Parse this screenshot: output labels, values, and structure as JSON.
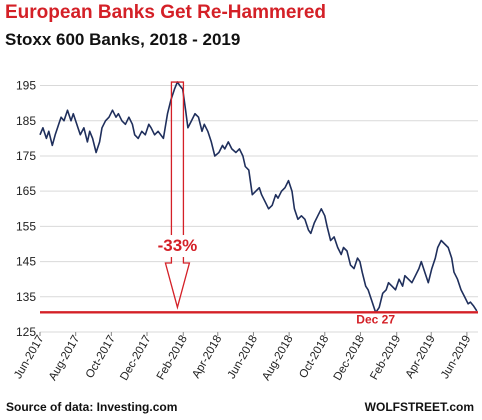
{
  "header": {
    "title": "European  Banks Get Re-Hammered",
    "subtitle": "Stoxx 600 Banks, 2018 - 2019"
  },
  "footer": {
    "source": "Source of data: Investing.com",
    "brand": "WOLFSTREET.com"
  },
  "chart_data": {
    "type": "line",
    "title": "European  Banks Get Re-Hammered",
    "subtitle": "Stoxx 600 Banks, 2018 - 2019",
    "xlabel": "",
    "ylabel": "",
    "ylim": [
      125,
      198
    ],
    "yticks": [
      125,
      135,
      145,
      155,
      165,
      175,
      185,
      195
    ],
    "xlim": [
      "2017-06-01",
      "2019-06-20"
    ],
    "xtick_labels": [
      {
        "date": "2017-06-01",
        "label": "Jun-2017"
      },
      {
        "date": "2017-08-01",
        "label": "Aug-2017"
      },
      {
        "date": "2017-10-01",
        "label": "Oct-2017"
      },
      {
        "date": "2017-12-01",
        "label": "Dec-2017"
      },
      {
        "date": "2018-02-01",
        "label": "Feb-2018"
      },
      {
        "date": "2018-04-01",
        "label": "Apr-2018"
      },
      {
        "date": "2018-06-01",
        "label": "Jun-2018"
      },
      {
        "date": "2018-08-01",
        "label": "Aug-2018"
      },
      {
        "date": "2018-10-01",
        "label": "Oct-2018"
      },
      {
        "date": "2018-12-01",
        "label": "Dec-2018"
      },
      {
        "date": "2019-02-01",
        "label": "Feb-2019"
      },
      {
        "date": "2019-04-01",
        "label": "Apr-2019"
      },
      {
        "date": "2019-06-01",
        "label": "Jun-2019"
      }
    ],
    "grid": {
      "horizontal": true,
      "vertical": false
    },
    "series": [
      {
        "color": "#1f2f5c",
        "points": [
          [
            "2017-06-01",
            181
          ],
          [
            "2017-06-06",
            183
          ],
          [
            "2017-06-12",
            180
          ],
          [
            "2017-06-16",
            182
          ],
          [
            "2017-06-22",
            178
          ],
          [
            "2017-06-27",
            181
          ],
          [
            "2017-07-03",
            184
          ],
          [
            "2017-07-07",
            186
          ],
          [
            "2017-07-12",
            185
          ],
          [
            "2017-07-18",
            188
          ],
          [
            "2017-07-24",
            185
          ],
          [
            "2017-07-28",
            187
          ],
          [
            "2017-08-03",
            184
          ],
          [
            "2017-08-09",
            181
          ],
          [
            "2017-08-15",
            183
          ],
          [
            "2017-08-21",
            179
          ],
          [
            "2017-08-25",
            182
          ],
          [
            "2017-08-30",
            180
          ],
          [
            "2017-09-05",
            176
          ],
          [
            "2017-09-11",
            179
          ],
          [
            "2017-09-15",
            183
          ],
          [
            "2017-09-21",
            185
          ],
          [
            "2017-09-27",
            186
          ],
          [
            "2017-10-03",
            188
          ],
          [
            "2017-10-09",
            186
          ],
          [
            "2017-10-13",
            187
          ],
          [
            "2017-10-19",
            185
          ],
          [
            "2017-10-25",
            184
          ],
          [
            "2017-10-31",
            186
          ],
          [
            "2017-11-06",
            184
          ],
          [
            "2017-11-10",
            181
          ],
          [
            "2017-11-16",
            180
          ],
          [
            "2017-11-22",
            182
          ],
          [
            "2017-11-28",
            181
          ],
          [
            "2017-12-04",
            184
          ],
          [
            "2017-12-08",
            183
          ],
          [
            "2017-12-14",
            181
          ],
          [
            "2017-12-20",
            182
          ],
          [
            "2017-12-29",
            180
          ],
          [
            "2018-01-05",
            187
          ],
          [
            "2018-01-11",
            191
          ],
          [
            "2018-01-17",
            194
          ],
          [
            "2018-01-22",
            196
          ],
          [
            "2018-01-26",
            195
          ],
          [
            "2018-01-31",
            194
          ],
          [
            "2018-02-05",
            188
          ],
          [
            "2018-02-09",
            183
          ],
          [
            "2018-02-15",
            185
          ],
          [
            "2018-02-21",
            187
          ],
          [
            "2018-02-27",
            186
          ],
          [
            "2018-03-05",
            182
          ],
          [
            "2018-03-09",
            184
          ],
          [
            "2018-03-15",
            182
          ],
          [
            "2018-03-21",
            179
          ],
          [
            "2018-03-27",
            175
          ],
          [
            "2018-04-03",
            176
          ],
          [
            "2018-04-09",
            178
          ],
          [
            "2018-04-13",
            177
          ],
          [
            "2018-04-19",
            179
          ],
          [
            "2018-04-25",
            177
          ],
          [
            "2018-05-02",
            176
          ],
          [
            "2018-05-08",
            177
          ],
          [
            "2018-05-14",
            175
          ],
          [
            "2018-05-18",
            172
          ],
          [
            "2018-05-24",
            171
          ],
          [
            "2018-05-30",
            164
          ],
          [
            "2018-06-05",
            165
          ],
          [
            "2018-06-11",
            166
          ],
          [
            "2018-06-15",
            164
          ],
          [
            "2018-06-21",
            162
          ],
          [
            "2018-06-27",
            160
          ],
          [
            "2018-07-03",
            161
          ],
          [
            "2018-07-09",
            164
          ],
          [
            "2018-07-13",
            163
          ],
          [
            "2018-07-19",
            165
          ],
          [
            "2018-07-25",
            166
          ],
          [
            "2018-07-31",
            168
          ],
          [
            "2018-08-06",
            165
          ],
          [
            "2018-08-10",
            160
          ],
          [
            "2018-08-16",
            157
          ],
          [
            "2018-08-22",
            158
          ],
          [
            "2018-08-28",
            157
          ],
          [
            "2018-09-03",
            154
          ],
          [
            "2018-09-07",
            153
          ],
          [
            "2018-09-13",
            156
          ],
          [
            "2018-09-19",
            158
          ],
          [
            "2018-09-25",
            160
          ],
          [
            "2018-10-01",
            158
          ],
          [
            "2018-10-05",
            155
          ],
          [
            "2018-10-11",
            151
          ],
          [
            "2018-10-17",
            152
          ],
          [
            "2018-10-23",
            149
          ],
          [
            "2018-10-29",
            147
          ],
          [
            "2018-11-02",
            149
          ],
          [
            "2018-11-08",
            148
          ],
          [
            "2018-11-14",
            144
          ],
          [
            "2018-11-20",
            143
          ],
          [
            "2018-11-26",
            146
          ],
          [
            "2018-11-30",
            145
          ],
          [
            "2018-12-04",
            142
          ],
          [
            "2018-12-10",
            138
          ],
          [
            "2018-12-14",
            137
          ],
          [
            "2018-12-20",
            134
          ],
          [
            "2018-12-27",
            130.5
          ],
          [
            "2019-01-02",
            132
          ],
          [
            "2019-01-08",
            136
          ],
          [
            "2019-01-14",
            137
          ],
          [
            "2019-01-18",
            139
          ],
          [
            "2019-01-24",
            138
          ],
          [
            "2019-01-30",
            137
          ],
          [
            "2019-02-05",
            140
          ],
          [
            "2019-02-11",
            138
          ],
          [
            "2019-02-15",
            141
          ],
          [
            "2019-02-21",
            140
          ],
          [
            "2019-02-27",
            139
          ],
          [
            "2019-03-05",
            141
          ],
          [
            "2019-03-11",
            143
          ],
          [
            "2019-03-15",
            145
          ],
          [
            "2019-03-21",
            142
          ],
          [
            "2019-03-27",
            139
          ],
          [
            "2019-04-02",
            143
          ],
          [
            "2019-04-08",
            146
          ],
          [
            "2019-04-12",
            149
          ],
          [
            "2019-04-18",
            151
          ],
          [
            "2019-04-24",
            150
          ],
          [
            "2019-04-30",
            149
          ],
          [
            "2019-05-06",
            146
          ],
          [
            "2019-05-10",
            142
          ],
          [
            "2019-05-16",
            140
          ],
          [
            "2019-05-22",
            137
          ],
          [
            "2019-05-28",
            135
          ],
          [
            "2019-06-03",
            133
          ],
          [
            "2019-06-07",
            133.5
          ],
          [
            "2019-06-12",
            132.5
          ],
          [
            "2019-06-18",
            131
          ]
        ]
      }
    ],
    "reference_line": {
      "y": 130.6,
      "color": "#d42027"
    },
    "annotations": [
      {
        "kind": "arrow",
        "from": [
          "2018-01-22",
          196
        ],
        "to": [
          "2018-01-22",
          132
        ],
        "text": "-33%",
        "text_y": 148,
        "color": "#d42027"
      },
      {
        "kind": "label",
        "x": "2018-12-27",
        "y": 128.5,
        "text": "Dec 27",
        "color": "#d42027"
      }
    ],
    "colors": {
      "line": "#1f2f5c",
      "accent": "#d42027",
      "grid": "#d9d9d9"
    }
  }
}
